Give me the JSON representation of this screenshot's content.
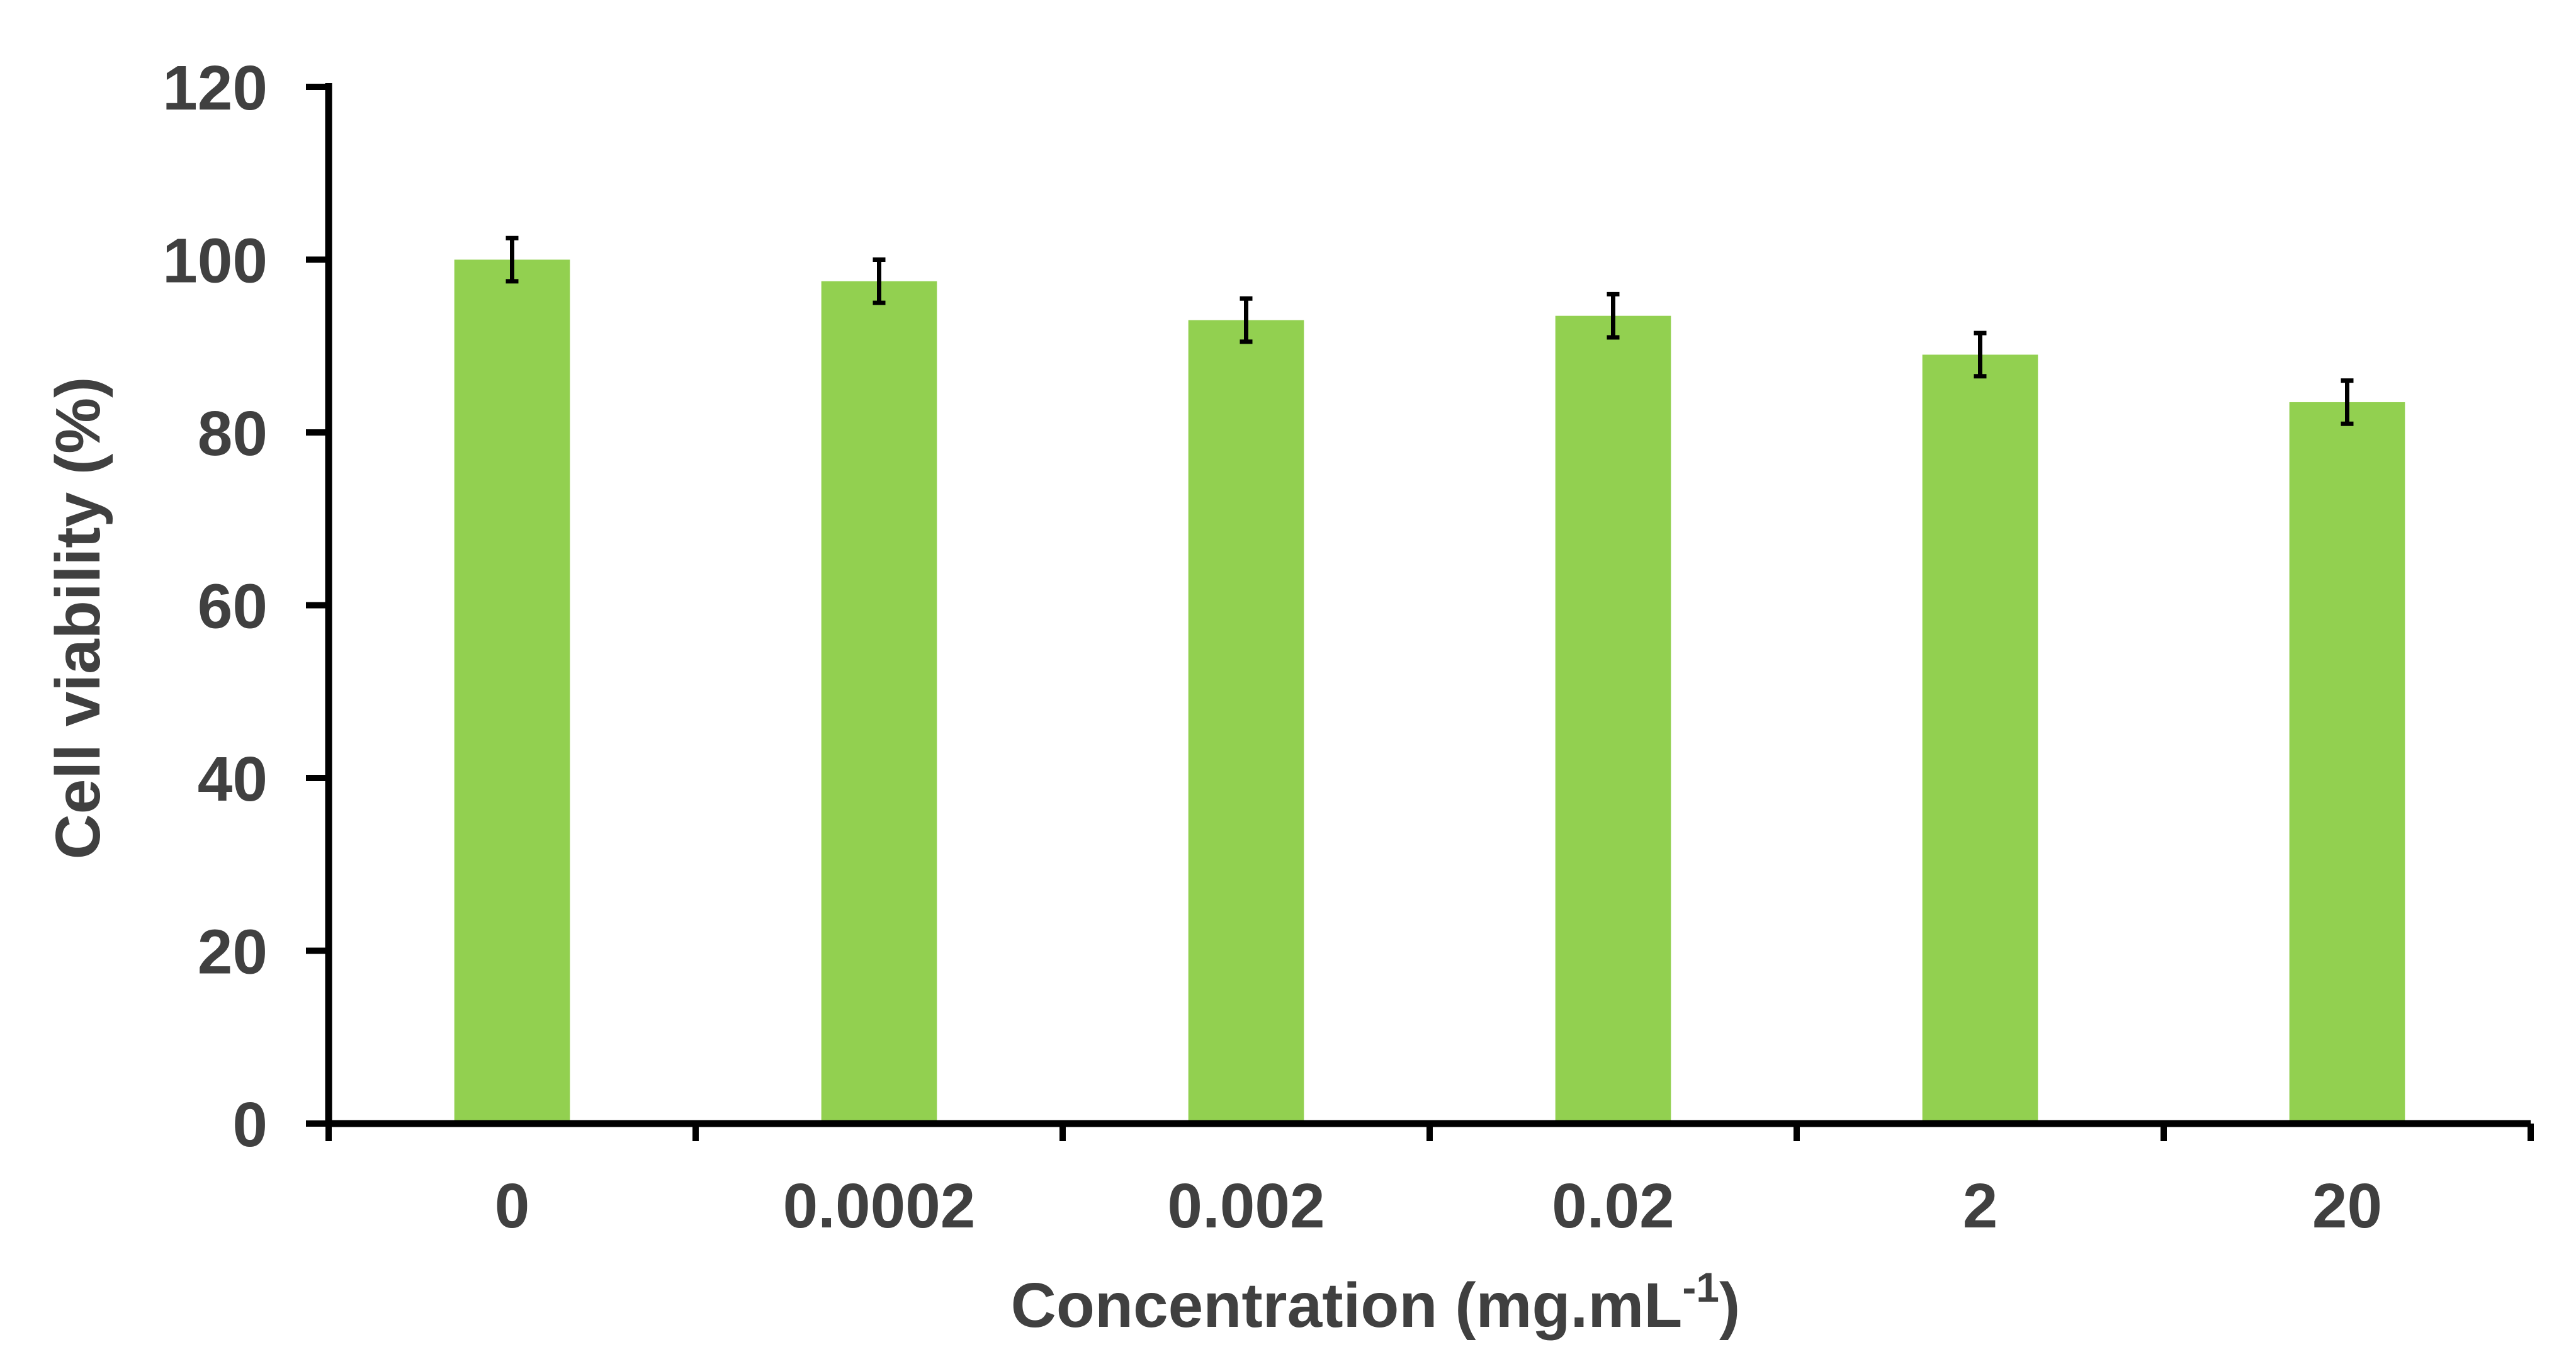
{
  "chart_data": {
    "type": "bar",
    "title": "",
    "xlabel": "Concentration (mg.mL",
    "xlabel_superscript": "-1",
    "xlabel_suffix": ")",
    "ylabel": "Cell viability (%)",
    "categories": [
      "0",
      "0.0002",
      "0.002",
      "0.02",
      "2",
      "20"
    ],
    "values": [
      100,
      97.5,
      93,
      93.5,
      89,
      83.5
    ],
    "errors": [
      2.5,
      2.5,
      2.5,
      2.5,
      2.5,
      2.5
    ],
    "ylim": [
      0,
      120
    ],
    "yticks": [
      0,
      20,
      40,
      60,
      80,
      100,
      120
    ],
    "bar_color": "#92d050",
    "error_color": "#000000",
    "axis_color": "#000000",
    "grid": false
  }
}
